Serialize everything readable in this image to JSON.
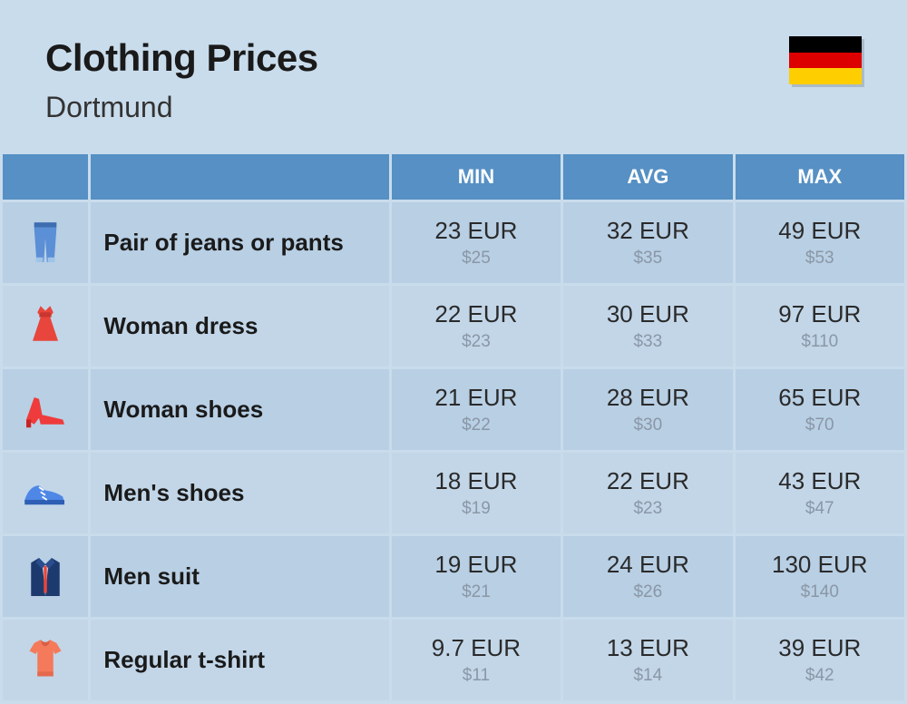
{
  "header": {
    "title": "Clothing Prices",
    "subtitle": "Dortmund",
    "flag_colors": [
      "#000000",
      "#dd0000",
      "#ffce00"
    ]
  },
  "columns": [
    "MIN",
    "AVG",
    "MAX"
  ],
  "colors": {
    "page_bg": "#c9dcec",
    "header_bg": "#5690c4",
    "row_bg_a": "#b8cfe4",
    "row_bg_b": "#c2d6e8",
    "title_text": "#1a1a1a",
    "price_text": "#2a2a2a",
    "price_sub_text": "#8a97a6"
  },
  "typography": {
    "title_fontsize": 42,
    "subtitle_fontsize": 32,
    "header_fontsize": 22,
    "label_fontsize": 26,
    "price_main_fontsize": 26,
    "price_sub_fontsize": 19
  },
  "rows": [
    {
      "icon": "jeans",
      "label": "Pair of jeans or pants",
      "min_eur": "23 EUR",
      "min_usd": "$25",
      "avg_eur": "32 EUR",
      "avg_usd": "$35",
      "max_eur": "49 EUR",
      "max_usd": "$53"
    },
    {
      "icon": "dress",
      "label": "Woman dress",
      "min_eur": "22 EUR",
      "min_usd": "$23",
      "avg_eur": "30 EUR",
      "avg_usd": "$33",
      "max_eur": "97 EUR",
      "max_usd": "$110"
    },
    {
      "icon": "heel",
      "label": "Woman shoes",
      "min_eur": "21 EUR",
      "min_usd": "$22",
      "avg_eur": "28 EUR",
      "avg_usd": "$30",
      "max_eur": "65 EUR",
      "max_usd": "$70"
    },
    {
      "icon": "sneaker",
      "label": "Men's shoes",
      "min_eur": "18 EUR",
      "min_usd": "$19",
      "avg_eur": "22 EUR",
      "avg_usd": "$23",
      "max_eur": "43 EUR",
      "max_usd": "$47"
    },
    {
      "icon": "suit",
      "label": "Men suit",
      "min_eur": "19 EUR",
      "min_usd": "$21",
      "avg_eur": "24 EUR",
      "avg_usd": "$26",
      "max_eur": "130 EUR",
      "max_usd": "$140"
    },
    {
      "icon": "tshirt",
      "label": "Regular t-shirt",
      "min_eur": "9.7 EUR",
      "min_usd": "$11",
      "avg_eur": "13 EUR",
      "avg_usd": "$14",
      "max_eur": "39 EUR",
      "max_usd": "$42"
    }
  ]
}
